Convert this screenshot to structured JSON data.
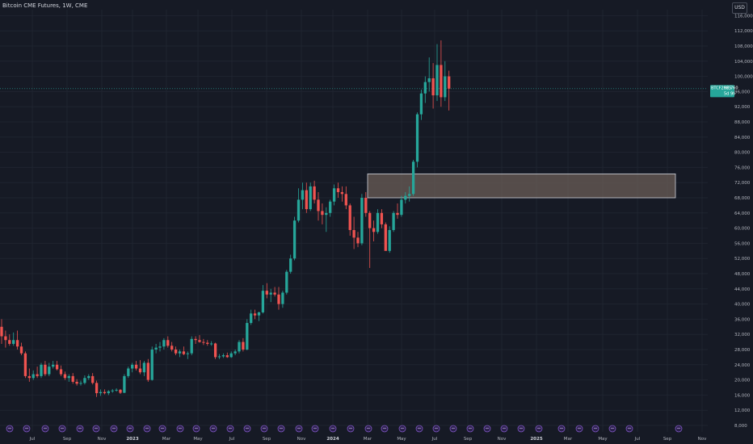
{
  "header": {
    "title": "Bitcoin CME Futures, 1W, CME",
    "currency": "USD"
  },
  "price_tag": {
    "symbol": "BTCF2025",
    "price": "96,760",
    "countdown": "5d 9h"
  },
  "colors": {
    "background": "#161a25",
    "up": "#26a69a",
    "down": "#ef5350",
    "grid": "#1f2430",
    "zone_fill": "#6b5d57",
    "zone_border": "#d1d4dc",
    "event_icon": "#7e57c2"
  },
  "chart_data": {
    "type": "candlestick",
    "timeframe": "1W",
    "y_ticks": [
      116000,
      112000,
      108000,
      104000,
      100000,
      96000,
      92000,
      88000,
      84000,
      80000,
      76000,
      72000,
      68000,
      64000,
      60000,
      56000,
      52000,
      48000,
      44000,
      40000,
      36000,
      32000,
      28000,
      24000,
      20000,
      16000,
      12000,
      8000
    ],
    "y_tick_labels": [
      "116,000",
      "112,000",
      "108,000",
      "104,000",
      "100,000",
      "96,000",
      "92,000",
      "88,000",
      "84,000",
      "80,000",
      "76,000",
      "72,000",
      "68,000",
      "64,000",
      "60,000",
      "56,000",
      "52,000",
      "48,000",
      "44,000",
      "40,000",
      "36,000",
      "32,000",
      "28,000",
      "24,000",
      "20,000",
      "16,000",
      "12,000",
      "8,000"
    ],
    "ylim": [
      6000,
      119000
    ],
    "x_labels": [
      {
        "label": "Jul",
        "bold": false
      },
      {
        "label": "Sep",
        "bold": false
      },
      {
        "label": "Nov",
        "bold": false
      },
      {
        "label": "2023",
        "bold": true
      },
      {
        "label": "Mar",
        "bold": false
      },
      {
        "label": "May",
        "bold": false
      },
      {
        "label": "Jul",
        "bold": false
      },
      {
        "label": "Sep",
        "bold": false
      },
      {
        "label": "Nov",
        "bold": false
      },
      {
        "label": "2024",
        "bold": true
      },
      {
        "label": "Mar",
        "bold": false
      },
      {
        "label": "May",
        "bold": false
      },
      {
        "label": "Jul",
        "bold": false
      },
      {
        "label": "Sep",
        "bold": false
      },
      {
        "label": "Nov",
        "bold": false
      },
      {
        "label": "2025",
        "bold": true
      },
      {
        "label": "Mar",
        "bold": false
      },
      {
        "label": "May",
        "bold": false
      },
      {
        "label": "Jul",
        "bold": false
      },
      {
        "label": "Sep",
        "bold": false
      },
      {
        "label": "Nov",
        "bold": false
      }
    ],
    "last_price": 96760,
    "zone": {
      "top": 74300,
      "bottom": 68000,
      "from_date": "2024-03",
      "to_date": "2025-10"
    },
    "event_icon_count": 20,
    "candles": [
      [
        34000,
        36000,
        29500,
        31500
      ],
      [
        31500,
        33000,
        28500,
        30500
      ],
      [
        30500,
        32000,
        29000,
        29500
      ],
      [
        29500,
        32500,
        29000,
        30500
      ],
      [
        30500,
        33000,
        28000,
        28800
      ],
      [
        28800,
        29800,
        26500,
        27000
      ],
      [
        27000,
        27500,
        20500,
        21000
      ],
      [
        21000,
        23000,
        19500,
        20500
      ],
      [
        20500,
        22500,
        20000,
        21500
      ],
      [
        21500,
        23500,
        20500,
        21000
      ],
      [
        21000,
        24500,
        20500,
        24000
      ],
      [
        24000,
        25000,
        21000,
        21500
      ],
      [
        21500,
        24500,
        21000,
        23500
      ],
      [
        23500,
        25000,
        23000,
        24000
      ],
      [
        24000,
        25000,
        22500,
        22800
      ],
      [
        22800,
        23800,
        21000,
        21500
      ],
      [
        21500,
        22200,
        20000,
        20500
      ],
      [
        20500,
        21500,
        19500,
        21000
      ],
      [
        21000,
        21800,
        19000,
        19500
      ],
      [
        19500,
        20200,
        18500,
        19000
      ],
      [
        19000,
        19800,
        18500,
        19200
      ],
      [
        19200,
        21200,
        18800,
        20500
      ],
      [
        20500,
        21500,
        20000,
        21000
      ],
      [
        21000,
        21800,
        18800,
        19200
      ],
      [
        19200,
        19800,
        15500,
        16500
      ],
      [
        16500,
        17500,
        15800,
        16800
      ],
      [
        16800,
        17500,
        16200,
        16500
      ],
      [
        16500,
        17300,
        16000,
        17000
      ],
      [
        17000,
        17600,
        16600,
        17200
      ],
      [
        17200,
        17800,
        16900,
        17400
      ],
      [
        17400,
        17600,
        16300,
        16600
      ],
      [
        16600,
        21500,
        16500,
        21000
      ],
      [
        21000,
        23500,
        20500,
        23000
      ],
      [
        23000,
        24500,
        22000,
        24000
      ],
      [
        24000,
        25000,
        22500,
        23000
      ],
      [
        23000,
        25200,
        21500,
        22000
      ],
      [
        22000,
        25000,
        21000,
        24500
      ],
      [
        24500,
        25500,
        19500,
        20000
      ],
      [
        20000,
        28800,
        19800,
        28000
      ],
      [
        28000,
        29500,
        27000,
        28500
      ],
      [
        28500,
        30000,
        27500,
        28800
      ],
      [
        28800,
        31000,
        28000,
        30500
      ],
      [
        30500,
        31500,
        28500,
        29000
      ],
      [
        29000,
        30000,
        27500,
        28000
      ],
      [
        28000,
        28800,
        26500,
        27000
      ],
      [
        27000,
        28000,
        26000,
        27500
      ],
      [
        27500,
        28800,
        26500,
        26800
      ],
      [
        26800,
        27500,
        25500,
        27000
      ],
      [
        27000,
        31500,
        26500,
        30800
      ],
      [
        30800,
        31500,
        29500,
        30500
      ],
      [
        30500,
        31800,
        29800,
        30000
      ],
      [
        30000,
        30800,
        29200,
        29800
      ],
      [
        29800,
        30500,
        29000,
        29500
      ],
      [
        29500,
        30200,
        29000,
        29600
      ],
      [
        29600,
        29800,
        25500,
        26000
      ],
      [
        26000,
        26800,
        25500,
        26200
      ],
      [
        26200,
        27000,
        25800,
        26500
      ],
      [
        26500,
        27200,
        25800,
        26000
      ],
      [
        26000,
        27500,
        25800,
        27000
      ],
      [
        27000,
        28000,
        26500,
        27500
      ],
      [
        27500,
        30500,
        27000,
        30000
      ],
      [
        30000,
        31000,
        27500,
        28000
      ],
      [
        28000,
        36000,
        27800,
        35000
      ],
      [
        35000,
        38500,
        34500,
        37500
      ],
      [
        37500,
        38500,
        36000,
        37000
      ],
      [
        37000,
        38000,
        35500,
        37800
      ],
      [
        37800,
        45000,
        37500,
        43500
      ],
      [
        43500,
        45500,
        41500,
        42500
      ],
      [
        42500,
        44000,
        40500,
        43000
      ],
      [
        43000,
        44500,
        42000,
        42500
      ],
      [
        42500,
        44500,
        38500,
        40000
      ],
      [
        40000,
        43500,
        39000,
        43000
      ],
      [
        43000,
        49000,
        42500,
        48500
      ],
      [
        48500,
        53000,
        48000,
        52000
      ],
      [
        52000,
        63000,
        51500,
        62000
      ],
      [
        62000,
        70500,
        61500,
        67500
      ],
      [
        67500,
        72000,
        65000,
        70000
      ],
      [
        70000,
        72000,
        64000,
        65000
      ],
      [
        65000,
        72000,
        64500,
        71000
      ],
      [
        71000,
        72500,
        66500,
        67500
      ],
      [
        67500,
        69500,
        62000,
        64500
      ],
      [
        64500,
        66500,
        61000,
        63500
      ],
      [
        63500,
        65500,
        59000,
        64000
      ],
      [
        64000,
        67500,
        63000,
        67000
      ],
      [
        67000,
        71500,
        66000,
        70500
      ],
      [
        70500,
        72000,
        68000,
        69500
      ],
      [
        69500,
        71000,
        67000,
        69000
      ],
      [
        69000,
        71000,
        65000,
        66000
      ],
      [
        66000,
        66500,
        58000,
        59500
      ],
      [
        59500,
        63000,
        54500,
        57500
      ],
      [
        57500,
        59000,
        55000,
        56000
      ],
      [
        56000,
        69000,
        55500,
        68000
      ],
      [
        68000,
        69500,
        63000,
        64000
      ],
      [
        64000,
        64500,
        49500,
        60000
      ],
      [
        60000,
        62000,
        56500,
        59000
      ],
      [
        59000,
        65000,
        58500,
        64000
      ],
      [
        64000,
        65000,
        60000,
        61000
      ],
      [
        61000,
        61500,
        55000,
        54000
      ],
      [
        54000,
        60500,
        53500,
        59500
      ],
      [
        59500,
        64500,
        59000,
        64000
      ],
      [
        64000,
        66500,
        62500,
        63500
      ],
      [
        63500,
        68500,
        63000,
        67500
      ],
      [
        67500,
        69500,
        66500,
        68500
      ],
      [
        68500,
        71000,
        67000,
        69000
      ],
      [
        69000,
        78000,
        68500,
        77500
      ],
      [
        77500,
        90500,
        76000,
        90000
      ],
      [
        90000,
        96500,
        88500,
        95500
      ],
      [
        95500,
        100000,
        93000,
        98500
      ],
      [
        98500,
        105000,
        96000,
        99500
      ],
      [
        99500,
        103500,
        91500,
        95000
      ],
      [
        95000,
        108500,
        93500,
        103000
      ],
      [
        103000,
        109500,
        92000,
        94500
      ],
      [
        94500,
        104000,
        93500,
        100000
      ],
      [
        100000,
        101500,
        91000,
        96760
      ]
    ]
  }
}
